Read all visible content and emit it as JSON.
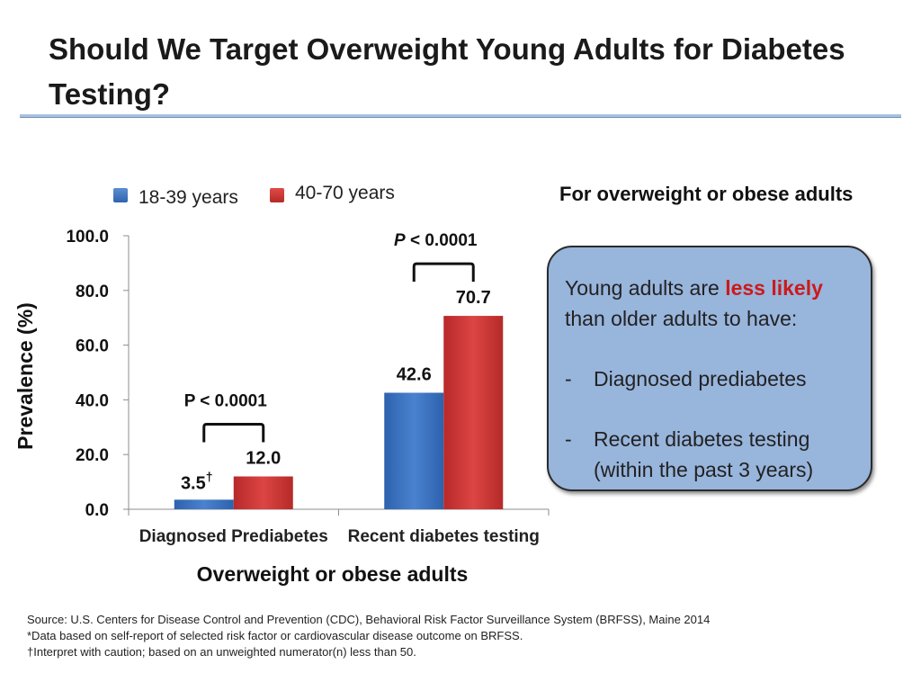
{
  "slide": {
    "title": "Should We Target Overweight Young Adults for Diabetes Testing?"
  },
  "legend": {
    "series1": "18-39 years",
    "series2": "40-70 years",
    "series1_color": "#3a72c0",
    "series2_color": "#c9302c"
  },
  "chart_data": {
    "type": "bar",
    "categories": [
      "Diagnosed Prediabetes",
      "Recent diabetes testing"
    ],
    "series": [
      {
        "name": "18-39 years",
        "values": [
          3.5,
          42.6
        ],
        "labels": [
          "3.5",
          "42.6"
        ]
      },
      {
        "name": "40-70 years",
        "values": [
          12.0,
          70.7
        ],
        "labels": [
          "12.0",
          "70.7"
        ]
      }
    ],
    "value_label_dagger": "†",
    "ylabel": "Prevalence (%)",
    "xlabel": "Overweight or obese adults",
    "ylim": [
      0,
      100
    ],
    "yticks": [
      0,
      20,
      40,
      60,
      80,
      100
    ],
    "ytick_labels": [
      "0.0",
      "20.0",
      "40.0",
      "60.0",
      "80.0",
      "100.0"
    ],
    "annotations": [
      {
        "group": 0,
        "p_prefix": "P",
        "p_text": " < 0.0001"
      },
      {
        "group": 1,
        "p_prefix": "P",
        "p_text": " < 0.0001"
      }
    ]
  },
  "sidebar": {
    "heading": "For overweight or obese adults",
    "intro_before": "Young adults are ",
    "intro_emphasis": "less likely",
    "intro_after": " than older adults to have:",
    "bullets": [
      {
        "dash": "-",
        "text": "Diagnosed prediabetes"
      },
      {
        "dash": "-",
        "text": "Recent diabetes testing (within the past 3 years)"
      }
    ]
  },
  "footnotes": {
    "source": "Source: U.S. Centers for Disease Control and Prevention (CDC), Behavioral Risk Factor Surveillance System (BRFSS), Maine 2014",
    "note1": "*Data based on self-report of selected risk factor or cardiovascular disease outcome on BRFSS.",
    "note2": "†Interpret with caution; based on an unweighted numerator(n) less than 50."
  }
}
